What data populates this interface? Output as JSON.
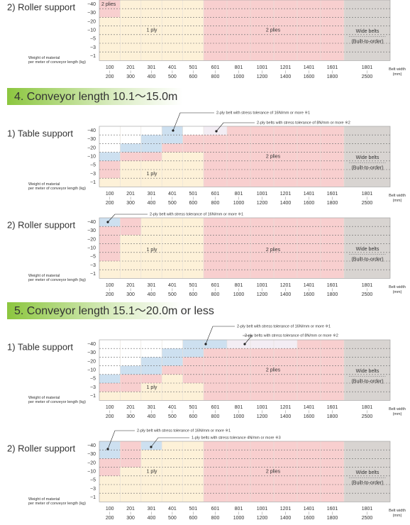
{
  "axis": {
    "rows": [
      "−40",
      "−30",
      "−20",
      "−10",
      "−5",
      "−3",
      "−1"
    ],
    "width_from": [
      "100",
      "201",
      "301",
      "401",
      "501",
      "601",
      "801",
      "1001",
      "1201",
      "1401",
      "1601",
      "1801"
    ],
    "width_to": [
      "200",
      "300",
      "400",
      "500",
      "600",
      "800",
      "1000",
      "1200",
      "1400",
      "1600",
      "1800",
      "2500"
    ],
    "weight_label": [
      "Weight of material",
      "per meter of conveyor length (kg)"
    ],
    "width_label": [
      "Belt width",
      "(mm)"
    ],
    "one_ply": "1 ply",
    "two_plies": "2 plies",
    "wide": [
      "Wide belts",
      "(Built-to-order)"
    ]
  },
  "sections": [
    {
      "title": "4. Conveyor length 10.1～15.0m"
    },
    {
      "title": "5. Conveyor length 15.1～20.0m or less"
    }
  ],
  "charts": [
    {
      "label": "2) Roller support",
      "annotations": []
    },
    {
      "label": "1) Table support",
      "annotations": [
        "2-ply belt with stress tolerance of 16N/mm or more ※1",
        "2-ply belts with stress tolerance of 8N/mm or more ※2"
      ]
    },
    {
      "label": "2) Roller support",
      "annotations": [
        "2-ply belt with stress tolerance of 16N/mm or more ※1"
      ]
    },
    {
      "label": "1) Table support",
      "annotations": [
        "2-ply belt with stress tolerance of 16N/mm or more ※1",
        "2-ply belts with stress tolerance of 8N/mm or more ※2"
      ]
    },
    {
      "label": "2) Roller support",
      "annotations": [
        "2-ply belt with stress tolerance of 16N/mm or more ※1",
        "1-ply belts with stress tolerance 4N/mm or more ※3"
      ]
    }
  ]
}
